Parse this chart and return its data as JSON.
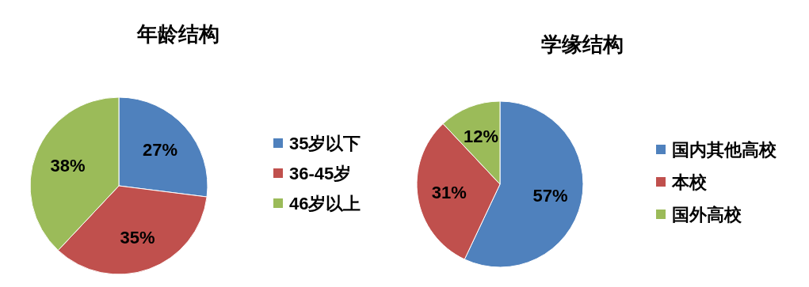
{
  "chart_data": [
    {
      "type": "pie",
      "title": "年龄结构",
      "categories": [
        "35岁以下",
        "36-45岁",
        "46岁以上"
      ],
      "values": [
        27,
        35,
        38
      ],
      "value_labels": [
        "27%",
        "35%",
        "38%"
      ],
      "colors": [
        "#4f81bd",
        "#c0504d",
        "#9bbb59"
      ],
      "legend": "right"
    },
    {
      "type": "pie",
      "title": "学缘结构",
      "categories": [
        "国内其他高校",
        "本校",
        "国外高校"
      ],
      "values": [
        57,
        31,
        12
      ],
      "value_labels": [
        "57%",
        "31%",
        "12%"
      ],
      "colors": [
        "#4f81bd",
        "#c0504d",
        "#9bbb59"
      ],
      "legend": "right"
    }
  ]
}
